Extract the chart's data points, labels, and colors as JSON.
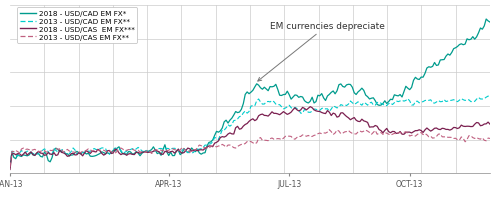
{
  "x_labels": [
    "JAN-13",
    "APR-13",
    "JUL-13",
    "OCT-13"
  ],
  "annotation_text": "EM currencies depreciate",
  "legend_entries": [
    {
      "label": "2018 - USD/CAD EM FX*",
      "color": "#009B8D",
      "linestyle": "solid",
      "lw": 0.9
    },
    {
      "label": "2013 - USD/CAD EM FX**",
      "color": "#00CCCC",
      "linestyle": "dashed",
      "lw": 0.8
    },
    {
      "label": "2018 - USD/CAS  EM FX***",
      "color": "#7B2050",
      "linestyle": "solid",
      "lw": 0.9
    },
    {
      "label": "2013 - USD/CAS EM FX**",
      "color": "#C06080",
      "linestyle": "dashed",
      "lw": 0.8
    }
  ],
  "background_color": "#ffffff",
  "grid_color": "#cccccc",
  "figsize": [
    5.0,
    2.05
  ],
  "dpi": 100,
  "n_points": 252,
  "n_vertical_lines": 13
}
